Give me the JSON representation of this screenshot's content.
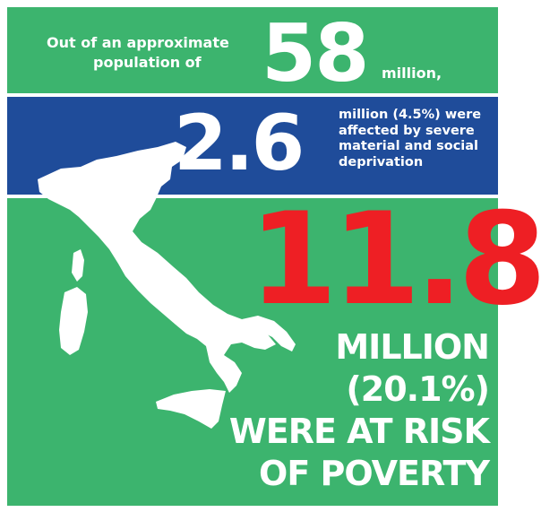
{
  "intro": {
    "line1": "Out of an approximate",
    "line2": "population of",
    "population_value": "58",
    "population_unit": "million,"
  },
  "deprivation": {
    "value": "2.6",
    "description": "million (4.5%) were affected by severe material and social deprivation"
  },
  "poverty": {
    "value": "11.8",
    "lines": [
      "MILLION",
      "(20.1%)",
      "WERE AT RISK",
      "OF POVERTY"
    ]
  },
  "colors": {
    "green": "#3cb46e",
    "blue": "#1f4c9a",
    "red": "#ee1f24",
    "white": "#ffffff"
  },
  "map": {
    "icon": "italy-map-icon"
  }
}
